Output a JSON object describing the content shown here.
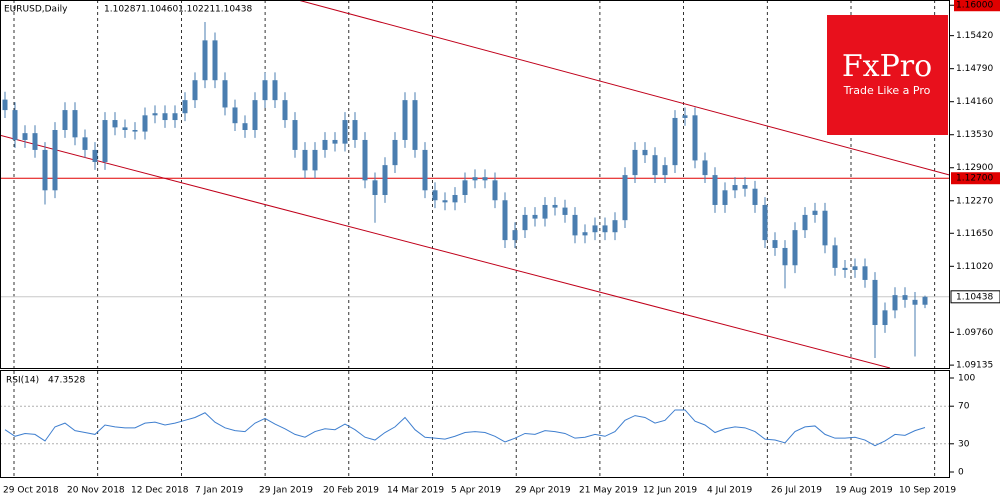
{
  "chart_data": {
    "type": "candlestick",
    "title": "EURUSD,Daily",
    "ohlc_labels": [
      "1.10287",
      "1.10460",
      "1.10221",
      "1.10438"
    ],
    "color": "#4a7eb0",
    "open": [
      1.142,
      1.14,
      1.1343,
      1.1356,
      1.1324,
      1.1247,
      1.1362,
      1.14,
      1.1348,
      1.1324,
      1.1301,
      1.1381,
      1.1367,
      1.1362,
      1.1359,
      1.139,
      1.1394,
      1.1381,
      1.1394,
      1.1419,
      1.1457,
      1.1533,
      1.1457,
      1.1405,
      1.1375,
      1.1362,
      1.1419,
      1.1457,
      1.1419,
      1.1381,
      1.1324,
      1.1285,
      1.1324,
      1.1343,
      1.1336,
      1.1381,
      1.1343,
      1.1266,
      1.1238,
      1.1295,
      1.1343,
      1.1419,
      1.1324,
      1.1247,
      1.1228,
      1.1224,
      1.1238,
      1.1266,
      1.1272,
      1.1266,
      1.1228,
      1.1152,
      1.1171,
      1.12,
      1.1193,
      1.1219,
      1.1214,
      1.12,
      1.1161,
      1.1167,
      1.118,
      1.1167,
      1.119,
      1.1276,
      1.1324,
      1.1314,
      1.1276,
      1.1295,
      1.1385,
      1.139,
      1.1304,
      1.1276,
      1.1219,
      1.1247,
      1.1257,
      1.125,
      1.1219,
      1.1152,
      1.1137,
      1.1104,
      1.1171,
      1.12,
      1.1208,
      1.1142,
      1.1099,
      1.1095,
      1.1102,
      1.1076,
      1.099,
      1.1018,
      1.1047,
      1.1038,
      1.10287
    ],
    "high": [
      1.1435,
      1.1415,
      1.1371,
      1.1371,
      1.1339,
      1.1377,
      1.1415,
      1.1415,
      1.1363,
      1.1339,
      1.1396,
      1.1396,
      1.1382,
      1.1377,
      1.1405,
      1.1409,
      1.1409,
      1.1409,
      1.1434,
      1.1472,
      1.1568,
      1.1548,
      1.1472,
      1.142,
      1.139,
      1.1434,
      1.1472,
      1.1472,
      1.1434,
      1.1396,
      1.1339,
      1.1339,
      1.1358,
      1.1358,
      1.1396,
      1.1396,
      1.1358,
      1.1281,
      1.131,
      1.1358,
      1.1434,
      1.1434,
      1.1339,
      1.1262,
      1.1243,
      1.1253,
      1.1281,
      1.1287,
      1.1287,
      1.1281,
      1.1243,
      1.1186,
      1.1215,
      1.1215,
      1.1234,
      1.1234,
      1.1229,
      1.1215,
      1.1182,
      1.1195,
      1.1195,
      1.1205,
      1.1291,
      1.1339,
      1.1339,
      1.1329,
      1.131,
      1.14,
      1.1405,
      1.1405,
      1.1319,
      1.1291,
      1.1262,
      1.1272,
      1.1272,
      1.1265,
      1.1234,
      1.1167,
      1.1152,
      1.1186,
      1.1215,
      1.1223,
      1.1223,
      1.1157,
      1.1114,
      1.1117,
      1.1117,
      1.1091,
      1.1033,
      1.1062,
      1.1062,
      1.1053,
      1.1046
    ],
    "low": [
      1.1385,
      1.1328,
      1.1328,
      1.1309,
      1.122,
      1.1232,
      1.1347,
      1.1333,
      1.1309,
      1.1286,
      1.1286,
      1.1352,
      1.1347,
      1.1344,
      1.1344,
      1.1375,
      1.1366,
      1.1366,
      1.1379,
      1.1404,
      1.1442,
      1.1442,
      1.139,
      1.136,
      1.1347,
      1.1347,
      1.1404,
      1.1404,
      1.1366,
      1.1309,
      1.127,
      1.127,
      1.1309,
      1.1321,
      1.1321,
      1.1328,
      1.1251,
      1.1185,
      1.1223,
      1.128,
      1.1328,
      1.1309,
      1.1232,
      1.1213,
      1.1209,
      1.1209,
      1.1223,
      1.1251,
      1.1251,
      1.1213,
      1.1137,
      1.1137,
      1.1156,
      1.1178,
      1.1178,
      1.1199,
      1.1185,
      1.1146,
      1.1146,
      1.1152,
      1.1152,
      1.1152,
      1.1175,
      1.1261,
      1.1299,
      1.1261,
      1.1261,
      1.128,
      1.137,
      1.1289,
      1.1261,
      1.1204,
      1.1204,
      1.1232,
      1.1235,
      1.1204,
      1.1137,
      1.1122,
      1.106,
      1.1089,
      1.1156,
      1.1185,
      1.1127,
      1.1084,
      1.108,
      1.108,
      1.1061,
      1.0927,
      1.0975,
      1.1003,
      1.1023,
      1.093,
      1.10221
    ],
    "close": [
      1.14,
      1.1343,
      1.1356,
      1.1324,
      1.1247,
      1.1362,
      1.14,
      1.1348,
      1.1324,
      1.1301,
      1.1381,
      1.1367,
      1.1362,
      1.1359,
      1.139,
      1.1394,
      1.1381,
      1.1394,
      1.1419,
      1.1457,
      1.1533,
      1.1457,
      1.1405,
      1.1375,
      1.1362,
      1.1419,
      1.1457,
      1.1419,
      1.1381,
      1.1324,
      1.1285,
      1.1324,
      1.1343,
      1.1336,
      1.1381,
      1.1343,
      1.1266,
      1.1238,
      1.1295,
      1.1343,
      1.1419,
      1.1324,
      1.1247,
      1.1228,
      1.1224,
      1.1238,
      1.1266,
      1.1272,
      1.1266,
      1.1228,
      1.1152,
      1.1171,
      1.12,
      1.1193,
      1.1219,
      1.1214,
      1.12,
      1.1161,
      1.1167,
      1.118,
      1.1167,
      1.119,
      1.1276,
      1.1324,
      1.1314,
      1.1276,
      1.1295,
      1.1385,
      1.139,
      1.1304,
      1.1276,
      1.1219,
      1.1247,
      1.1257,
      1.125,
      1.1219,
      1.1152,
      1.1137,
      1.1104,
      1.1171,
      1.12,
      1.1208,
      1.1142,
      1.1099,
      1.1095,
      1.1102,
      1.1076,
      1.099,
      1.1018,
      1.1047,
      1.1038,
      1.10287,
      1.10438
    ],
    "ylim": [
      1.0908,
      1.161
    ],
    "yticks": [
      {
        "value": 1.16,
        "label": "1.16000"
      },
      {
        "value": 1.1542,
        "label": "1.15420"
      },
      {
        "value": 1.1479,
        "label": "1.14790"
      },
      {
        "value": 1.1416,
        "label": "1.14160"
      },
      {
        "value": 1.1353,
        "label": "1.13530"
      },
      {
        "value": 1.129,
        "label": "1.12900"
      },
      {
        "value": 1.1227,
        "label": "1.12270"
      },
      {
        "value": 1.1165,
        "label": "1.11650"
      },
      {
        "value": 1.1102,
        "label": "1.11020"
      },
      {
        "value": 1.0976,
        "label": "1.09760"
      },
      {
        "value": 1.09135,
        "label": "1.09135"
      }
    ],
    "level": {
      "value": 1.127,
      "label": "1.12700",
      "color": "#e00000"
    },
    "trendline_color": "#c0001a",
    "trendlines": [
      {
        "start": [
          29.3,
          1.161
        ],
        "end": [
          94.5,
          1.1276
        ]
      },
      {
        "start": [
          -0.5,
          1.1352
        ],
        "end": [
          88.5,
          1.0908
        ]
      }
    ],
    "date_labels": [
      "29 Oct 2018",
      "20 Nov 2018",
      "12 Dec 2018",
      "7 Jan 2019",
      "29 Jan 2019",
      "20 Feb 2019",
      "14 Mar 2019",
      "5 Apr 2019",
      "29 Apr 2019",
      "21 May 2019",
      "12 Jun 2019",
      "4 Jul 2019",
      "26 Jul 2019",
      "19 Aug 2019",
      "10 Sep 2019"
    ],
    "grid": true,
    "indicator": {
      "type": "line",
      "title": "RSI(14)",
      "color": "#3f7fcf",
      "values": [
        45,
        38,
        41,
        40,
        33,
        48,
        52,
        44,
        42,
        40,
        50,
        48,
        47,
        47,
        52,
        53,
        50,
        52,
        55,
        58,
        63,
        53,
        47,
        44,
        43,
        52,
        57,
        51,
        46,
        40,
        37,
        43,
        46,
        45,
        51,
        45,
        37,
        34,
        42,
        48,
        58,
        45,
        37,
        36,
        35,
        38,
        42,
        43,
        42,
        38,
        32,
        36,
        41,
        40,
        44,
        43,
        41,
        36,
        37,
        40,
        38,
        43,
        55,
        60,
        58,
        52,
        55,
        66,
        66,
        54,
        50,
        42,
        46,
        48,
        47,
        43,
        35,
        34,
        31,
        43,
        48,
        49,
        40,
        36,
        36,
        37,
        34,
        28,
        33,
        40,
        39,
        44,
        47.3528
      ],
      "ylim": [
        0,
        100
      ],
      "yticks": [
        100,
        70,
        30,
        0
      ]
    }
  },
  "logo": {
    "brand": "FxPro",
    "tagline": "Trade Like a Pro"
  }
}
